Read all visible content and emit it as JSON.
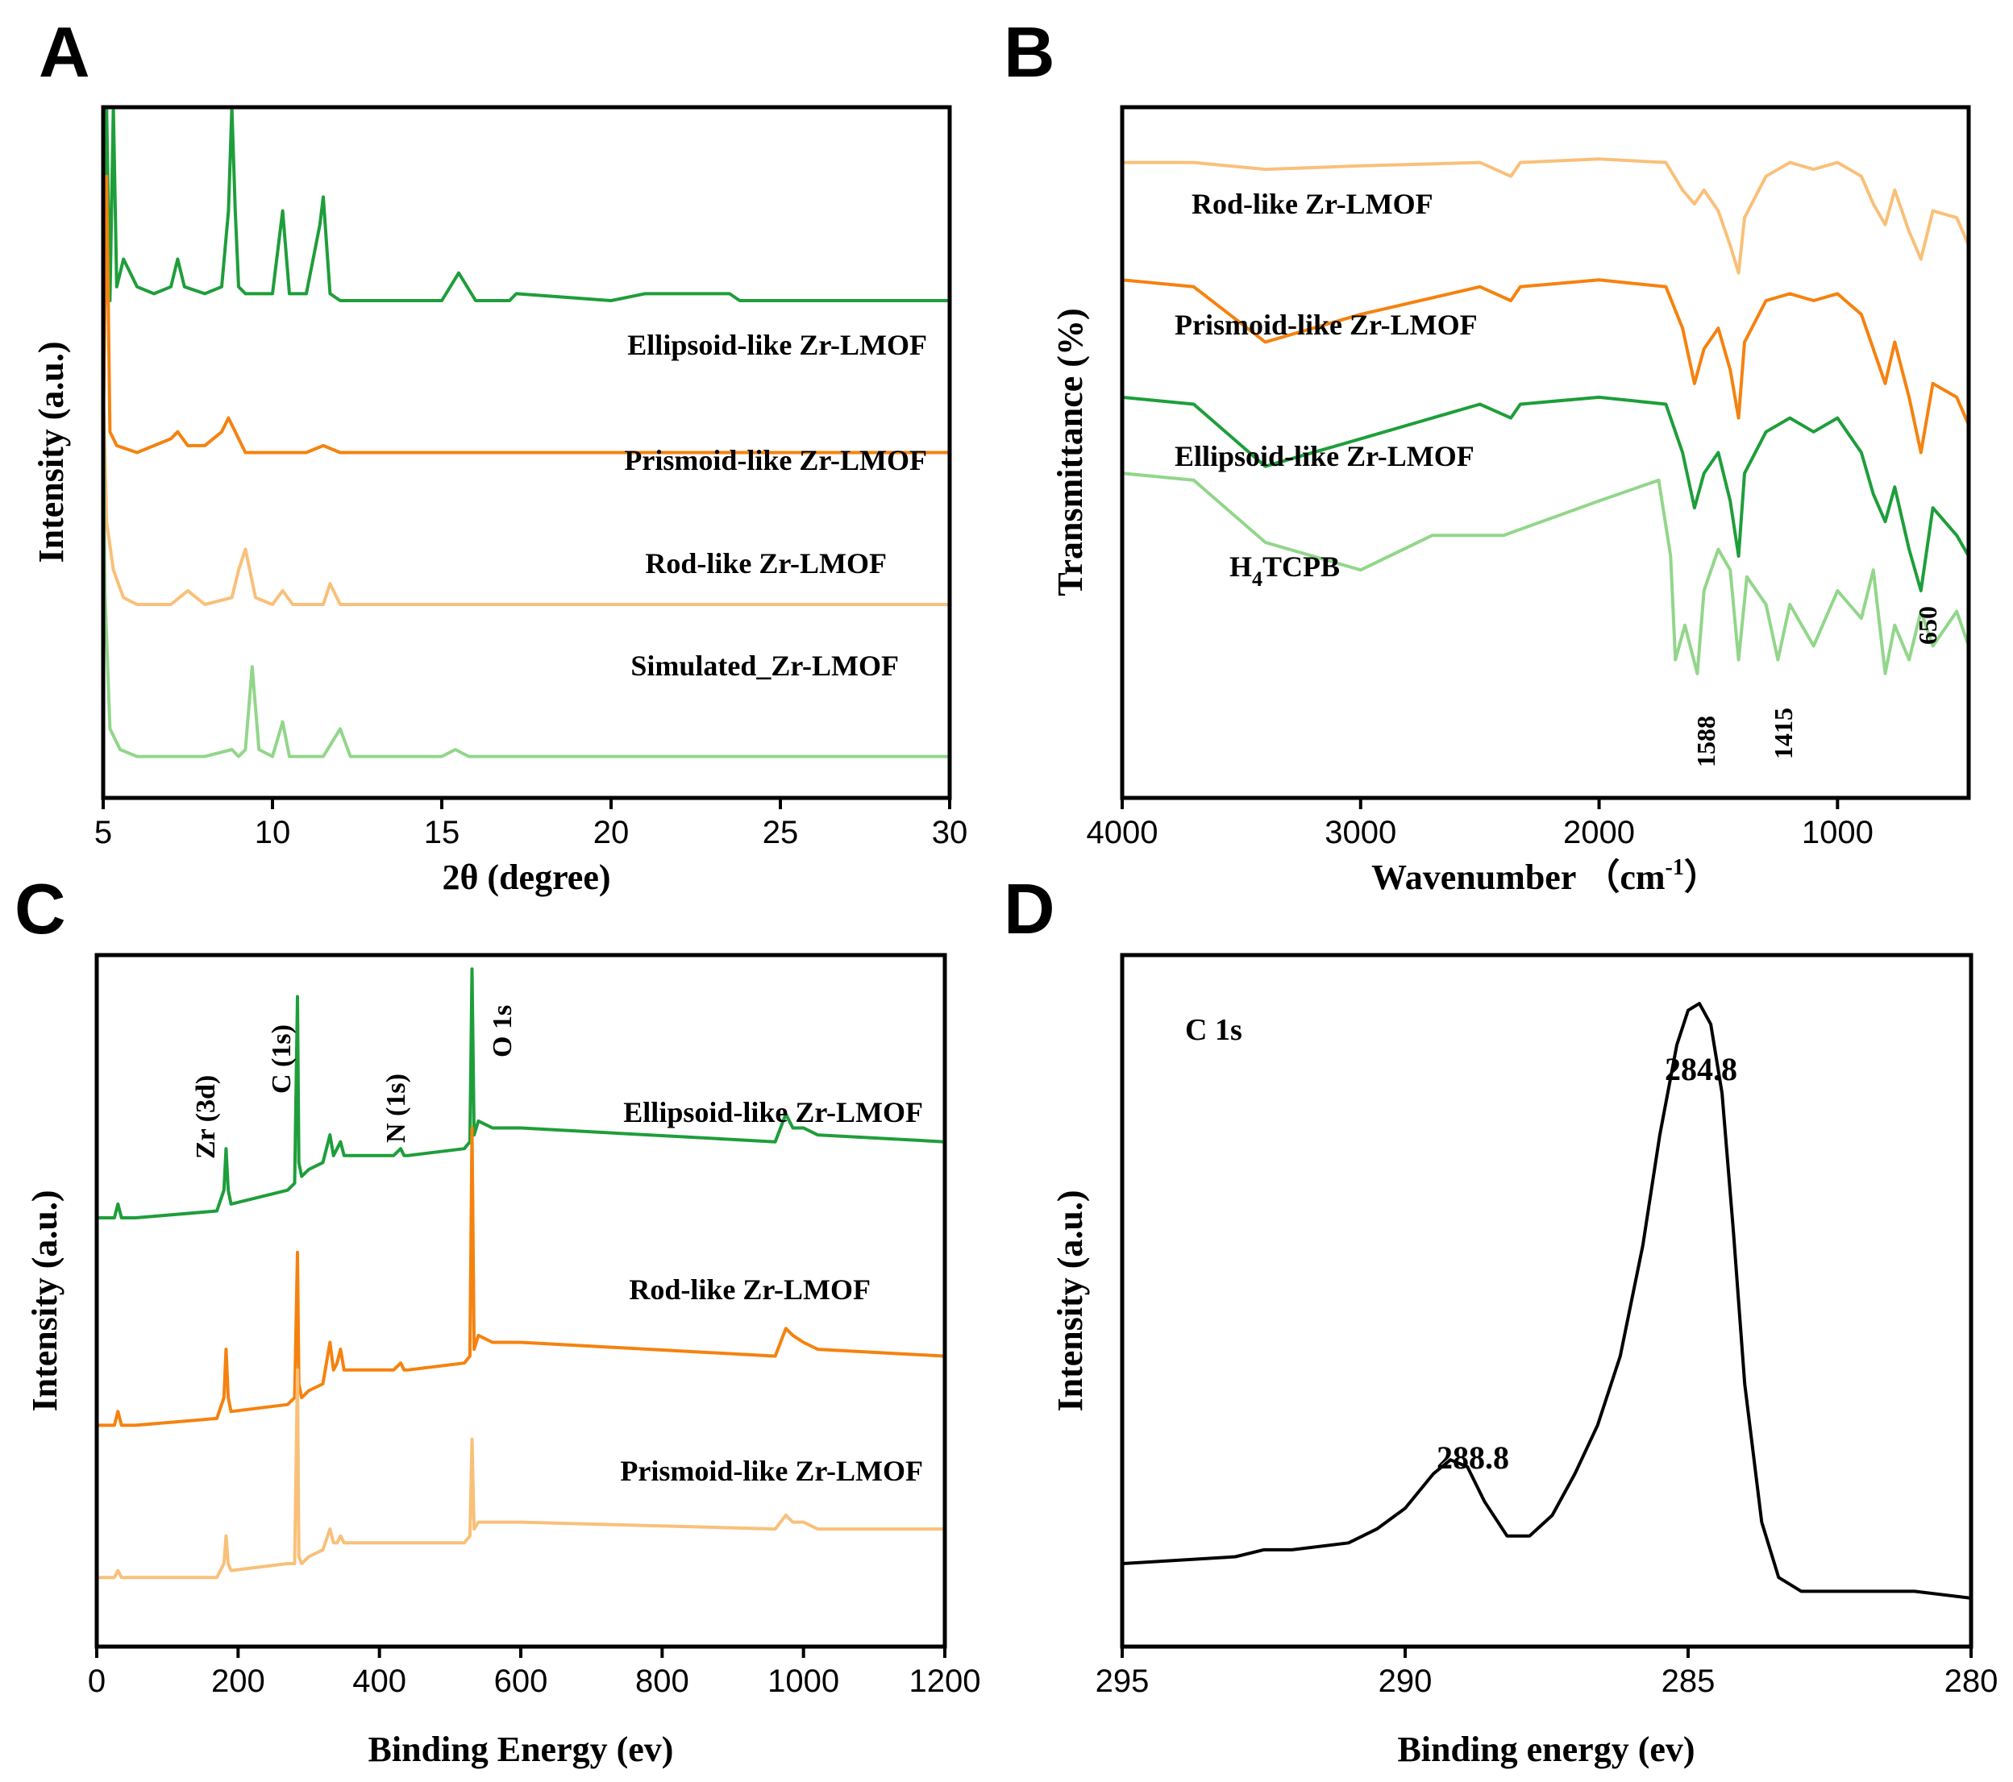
{
  "colors": {
    "green": "#1E9E3A",
    "orange": "#F5820F",
    "light_orange": "#F9C07A",
    "light_green": "#92D68A",
    "black": "#000000"
  },
  "chart_data": [
    {
      "panel": "A",
      "type": "line",
      "xlabel": "2θ (degree)",
      "ylabel": "Intensity (a.u.)",
      "xlim": [
        5,
        30
      ],
      "xticks": [
        "5",
        "10",
        "15",
        "20",
        "25",
        "30"
      ],
      "yticks_shown": false,
      "series": [
        {
          "name": "Ellipsoid-like Zr-LMOF",
          "color": "green",
          "baseline": 0.72,
          "x": [
            5.0,
            5.1,
            5.2,
            5.3,
            5.4,
            5.6,
            6.0,
            6.5,
            7.0,
            7.2,
            7.4,
            8.0,
            8.5,
            8.7,
            8.8,
            8.9,
            9.0,
            9.2,
            10.0,
            10.3,
            10.5,
            11.0,
            11.4,
            11.5,
            11.7,
            12.0,
            15.0,
            15.5,
            16.0,
            17.0,
            17.2,
            20.0,
            21.0,
            23.5,
            23.8,
            30.0
          ],
          "y": [
            0.72,
            1.85,
            0.72,
            1.85,
            0.74,
            0.78,
            0.74,
            0.73,
            0.74,
            0.78,
            0.74,
            0.73,
            0.74,
            0.85,
            1.28,
            0.85,
            0.74,
            0.73,
            0.73,
            0.85,
            0.73,
            0.73,
            0.83,
            0.87,
            0.73,
            0.72,
            0.72,
            0.76,
            0.72,
            0.72,
            0.73,
            0.72,
            0.73,
            0.73,
            0.72,
            0.72
          ]
        },
        {
          "name": "Prismoid-like Zr-LMOF",
          "color": "orange",
          "baseline": 0.5,
          "x": [
            5.0,
            5.1,
            5.2,
            5.4,
            6.0,
            7.0,
            7.2,
            7.5,
            8.0,
            8.5,
            8.7,
            8.9,
            9.2,
            10.0,
            11.0,
            11.5,
            12.0,
            30.0
          ],
          "y": [
            0.52,
            0.9,
            0.53,
            0.51,
            0.5,
            0.52,
            0.53,
            0.51,
            0.51,
            0.53,
            0.55,
            0.53,
            0.5,
            0.5,
            0.5,
            0.51,
            0.5,
            0.5
          ]
        },
        {
          "name": "Rod-like Zr-LMOF",
          "color": "light_orange",
          "baseline": 0.27,
          "x": [
            5.0,
            5.1,
            5.3,
            5.6,
            6.0,
            7.0,
            7.5,
            8.0,
            8.8,
            9.0,
            9.2,
            9.5,
            10.0,
            10.3,
            10.6,
            11.5,
            11.7,
            12.0,
            15.0,
            15.4,
            16.0,
            30.0
          ],
          "y": [
            0.6,
            0.4,
            0.33,
            0.29,
            0.28,
            0.28,
            0.3,
            0.28,
            0.29,
            0.33,
            0.36,
            0.29,
            0.28,
            0.3,
            0.28,
            0.28,
            0.31,
            0.28,
            0.28,
            0.28,
            0.28,
            0.28
          ]
        },
        {
          "name": "Simulated_Zr-LMOF",
          "color": "light_green",
          "baseline": 0.06,
          "x": [
            5.0,
            5.05,
            5.2,
            5.5,
            6.0,
            7.0,
            8.0,
            8.8,
            9.0,
            9.2,
            9.4,
            9.6,
            10.0,
            10.3,
            10.5,
            11.5,
            12.0,
            12.3,
            15.0,
            15.4,
            15.8,
            30.0
          ],
          "y": [
            0.6,
            0.3,
            0.1,
            0.07,
            0.06,
            0.06,
            0.06,
            0.07,
            0.06,
            0.07,
            0.19,
            0.07,
            0.06,
            0.11,
            0.06,
            0.06,
            0.1,
            0.06,
            0.06,
            0.07,
            0.06,
            0.06
          ]
        }
      ],
      "annotations": []
    },
    {
      "panel": "B",
      "type": "line",
      "xlabel": "Wavenumber（cm⁻¹）",
      "ylabel": "Transmittance (%)",
      "xlim": [
        4000,
        450
      ],
      "xticks": [
        "4000",
        "3000",
        "2000",
        "1000"
      ],
      "yticks_shown": false,
      "series": [
        {
          "name": "Rod-like Zr-LMOF",
          "color": "light_orange",
          "x": [
            4000,
            3700,
            3400,
            3000,
            2500,
            2370,
            2330,
            2000,
            1720,
            1650,
            1600,
            1560,
            1500,
            1450,
            1415,
            1390,
            1300,
            1200,
            1100,
            1000,
            900,
            850,
            800,
            760,
            700,
            650,
            600,
            500,
            450
          ],
          "y": [
            0.92,
            0.92,
            0.91,
            0.915,
            0.92,
            0.9,
            0.92,
            0.925,
            0.92,
            0.88,
            0.86,
            0.88,
            0.85,
            0.8,
            0.76,
            0.84,
            0.9,
            0.92,
            0.91,
            0.92,
            0.9,
            0.86,
            0.83,
            0.88,
            0.82,
            0.78,
            0.85,
            0.84,
            0.8
          ]
        },
        {
          "name": "Prismoid-like Zr-LMOF",
          "color": "orange",
          "x": [
            4000,
            3700,
            3400,
            3000,
            2500,
            2370,
            2330,
            2000,
            1720,
            1650,
            1600,
            1560,
            1500,
            1450,
            1415,
            1390,
            1300,
            1200,
            1100,
            1000,
            900,
            850,
            800,
            760,
            700,
            650,
            600,
            500,
            450
          ],
          "y": [
            0.75,
            0.74,
            0.66,
            0.7,
            0.74,
            0.72,
            0.74,
            0.75,
            0.74,
            0.68,
            0.6,
            0.65,
            0.68,
            0.62,
            0.55,
            0.66,
            0.72,
            0.73,
            0.72,
            0.73,
            0.7,
            0.65,
            0.6,
            0.66,
            0.58,
            0.5,
            0.6,
            0.58,
            0.54
          ]
        },
        {
          "name": "Ellipsoid-like Zr-LMOF",
          "color": "green",
          "x": [
            4000,
            3700,
            3400,
            3000,
            2500,
            2370,
            2330,
            2000,
            1720,
            1650,
            1600,
            1560,
            1500,
            1450,
            1415,
            1390,
            1300,
            1200,
            1100,
            1000,
            900,
            850,
            800,
            760,
            700,
            650,
            600,
            500,
            450
          ],
          "y": [
            0.58,
            0.57,
            0.48,
            0.52,
            0.57,
            0.55,
            0.57,
            0.58,
            0.57,
            0.5,
            0.42,
            0.47,
            0.5,
            0.43,
            0.35,
            0.47,
            0.53,
            0.55,
            0.53,
            0.55,
            0.5,
            0.44,
            0.4,
            0.45,
            0.36,
            0.3,
            0.42,
            0.38,
            0.35
          ]
        },
        {
          "name": "H4TCPB",
          "color": "light_green",
          "x": [
            4000,
            3700,
            3400,
            3000,
            2700,
            2400,
            2000,
            1750,
            1700,
            1680,
            1640,
            1588,
            1560,
            1500,
            1450,
            1415,
            1380,
            1300,
            1250,
            1200,
            1100,
            1000,
            900,
            850,
            800,
            760,
            700,
            650,
            600,
            500,
            450
          ],
          "y": [
            0.47,
            0.46,
            0.37,
            0.33,
            0.38,
            0.38,
            0.43,
            0.46,
            0.35,
            0.2,
            0.25,
            0.18,
            0.3,
            0.36,
            0.33,
            0.2,
            0.32,
            0.28,
            0.2,
            0.28,
            0.22,
            0.3,
            0.26,
            0.33,
            0.18,
            0.25,
            0.2,
            0.27,
            0.22,
            0.27,
            0.22
          ]
        }
      ],
      "annotations": [
        "1588",
        "1415",
        "650"
      ]
    },
    {
      "panel": "C",
      "type": "line",
      "xlabel": "Binding Energy (ev)",
      "ylabel": "Intensity (a.u.)",
      "xlim": [
        0,
        1200
      ],
      "xticks": [
        "0",
        "200",
        "400",
        "600",
        "800",
        "1000",
        "1200"
      ],
      "yticks_shown": false,
      "series": [
        {
          "name": "Ellipsoid-like Zr-LMOF",
          "color": "green",
          "x": [
            0,
            25,
            30,
            35,
            55,
            170,
            180,
            183,
            186,
            190,
            270,
            280,
            284,
            286,
            290,
            300,
            320,
            330,
            335,
            340,
            345,
            350,
            420,
            430,
            435,
            440,
            520,
            528,
            531,
            534,
            540,
            560,
            600,
            960,
            975,
            985,
            1000,
            1020,
            1200
          ],
          "y": [
            0.62,
            0.62,
            0.64,
            0.62,
            0.62,
            0.63,
            0.66,
            0.72,
            0.66,
            0.64,
            0.66,
            0.67,
            0.94,
            0.7,
            0.68,
            0.69,
            0.7,
            0.74,
            0.71,
            0.72,
            0.73,
            0.71,
            0.71,
            0.72,
            0.71,
            0.71,
            0.72,
            0.73,
            0.98,
            0.74,
            0.76,
            0.75,
            0.75,
            0.73,
            0.77,
            0.75,
            0.75,
            0.74,
            0.73
          ]
        },
        {
          "name": "Rod-like Zr-LMOF",
          "color": "orange",
          "x": [
            0,
            25,
            30,
            35,
            55,
            170,
            180,
            183,
            186,
            190,
            270,
            280,
            284,
            286,
            290,
            300,
            320,
            330,
            335,
            340,
            345,
            350,
            420,
            430,
            435,
            440,
            520,
            528,
            531,
            534,
            540,
            560,
            600,
            960,
            975,
            985,
            1000,
            1020,
            1200
          ],
          "y": [
            0.32,
            0.32,
            0.34,
            0.32,
            0.32,
            0.33,
            0.36,
            0.43,
            0.36,
            0.34,
            0.35,
            0.36,
            0.57,
            0.38,
            0.36,
            0.37,
            0.38,
            0.44,
            0.4,
            0.41,
            0.43,
            0.4,
            0.4,
            0.41,
            0.4,
            0.4,
            0.41,
            0.42,
            0.75,
            0.43,
            0.45,
            0.44,
            0.44,
            0.42,
            0.46,
            0.45,
            0.44,
            0.43,
            0.42
          ]
        },
        {
          "name": "Prismoid-like Zr-LMOF",
          "color": "light_orange",
          "x": [
            0,
            25,
            30,
            35,
            55,
            170,
            180,
            183,
            186,
            190,
            270,
            280,
            284,
            286,
            290,
            300,
            320,
            330,
            335,
            340,
            345,
            350,
            420,
            430,
            435,
            440,
            520,
            528,
            531,
            534,
            540,
            560,
            600,
            960,
            975,
            985,
            1000,
            1020,
            1200
          ],
          "y": [
            0.1,
            0.1,
            0.11,
            0.1,
            0.1,
            0.1,
            0.12,
            0.16,
            0.12,
            0.11,
            0.12,
            0.12,
            0.4,
            0.13,
            0.12,
            0.13,
            0.14,
            0.17,
            0.15,
            0.15,
            0.16,
            0.15,
            0.15,
            0.15,
            0.15,
            0.15,
            0.15,
            0.16,
            0.3,
            0.17,
            0.18,
            0.18,
            0.18,
            0.17,
            0.19,
            0.18,
            0.18,
            0.17,
            0.17
          ]
        }
      ],
      "annotations": [
        "Zr (3d)",
        "C (1s)",
        "N (1s)",
        "O 1s"
      ]
    },
    {
      "panel": "D",
      "type": "line",
      "xlabel": "Binding energy (ev)",
      "ylabel": "Intensity (a.u.)",
      "xlim": [
        295,
        280
      ],
      "xticks": [
        "295",
        "290",
        "285",
        "280"
      ],
      "yticks_shown": false,
      "series": [
        {
          "name": "C 1s",
          "color": "black",
          "x": [
            295,
            293,
            292.5,
            292,
            291,
            290.5,
            290,
            289.5,
            289.2,
            288.9,
            288.6,
            288.2,
            287.8,
            287.4,
            287.0,
            286.6,
            286.2,
            285.8,
            285.5,
            285.2,
            285.0,
            284.8,
            284.6,
            284.4,
            284.2,
            284.0,
            283.7,
            283.4,
            283.0,
            282.5,
            281,
            280
          ],
          "y": [
            0.12,
            0.13,
            0.14,
            0.14,
            0.15,
            0.17,
            0.2,
            0.25,
            0.27,
            0.26,
            0.21,
            0.16,
            0.16,
            0.19,
            0.25,
            0.32,
            0.42,
            0.58,
            0.74,
            0.87,
            0.92,
            0.93,
            0.9,
            0.8,
            0.6,
            0.38,
            0.18,
            0.1,
            0.08,
            0.08,
            0.08,
            0.07
          ]
        }
      ],
      "annotations": [
        "C 1s",
        "284.8",
        "288.8"
      ]
    }
  ],
  "panels": {
    "A": {
      "letter": "A",
      "xlabel": "2θ (degree)",
      "ylabel": "Intensity (a.u.)",
      "labels": [
        "Ellipsoid-like Zr-LMOF",
        "Prismoid-like Zr-LMOF",
        "Rod-like Zr-LMOF",
        "Simulated_Zr-LMOF"
      ]
    },
    "B": {
      "letter": "B",
      "xlabel_main": "Wavenumber",
      "xlabel_unit": "（cm",
      "xlabel_sup": "-1",
      "xlabel_close": "）",
      "ylabel": "Transmittance (%)",
      "labels": [
        "Rod-like Zr-LMOF",
        "Prismoid-like Zr-LMOF",
        "Ellipsoid-like Zr-LMOF"
      ],
      "h4tcpb_h": "H",
      "h4tcpb_sub": "4",
      "h4tcpb_rest": "TCPB",
      "peak_1588": "1588",
      "peak_1415": "1415",
      "peak_650": "650"
    },
    "C": {
      "letter": "C",
      "xlabel": "Binding Energy (ev)",
      "ylabel": "Intensity (a.u.)",
      "labels": [
        "Ellipsoid-like Zr-LMOF",
        "Rod-like Zr-LMOF",
        "Prismoid-like Zr-LMOF"
      ],
      "peaks": [
        "Zr (3d)",
        "C (1s)",
        "N (1s)",
        "O 1s"
      ]
    },
    "D": {
      "letter": "D",
      "xlabel": "Binding energy (ev)",
      "ylabel": "Intensity (a.u.)",
      "inner_label": "C 1s",
      "peak_main": "284.8",
      "peak_minor": "288.8"
    }
  }
}
